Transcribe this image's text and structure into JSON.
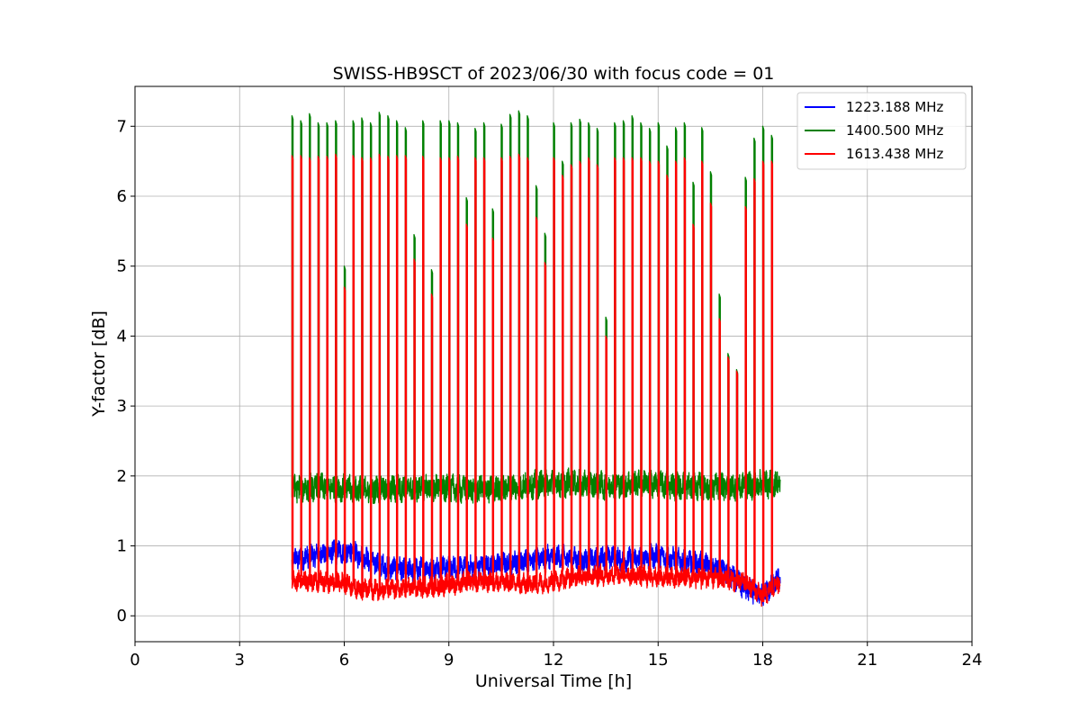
{
  "chart_data": {
    "type": "line",
    "title": "SWISS-HB9SCT of 2023/06/30 with focus code = 01",
    "xlabel": "Universal Time [h]",
    "ylabel": "Y-factor [dB]",
    "xlim": [
      0,
      24
    ],
    "ylim": [
      -0.37,
      7.57
    ],
    "x_ticks": [
      0,
      3,
      6,
      9,
      12,
      15,
      18,
      21,
      24
    ],
    "y_ticks": [
      0,
      1,
      2,
      3,
      4,
      5,
      6,
      7
    ],
    "grid": true,
    "legend_position": "top-right",
    "data_start_hour": 4.5,
    "data_end_hour": 18.5,
    "series": [
      {
        "name": "1223.188 MHz",
        "color": "#0000ff",
        "baseline": {
          "x": [
            4.5,
            5.0,
            5.5,
            6.0,
            6.5,
            7.0,
            7.5,
            8.0,
            8.5,
            9.0,
            9.5,
            10.0,
            10.5,
            11.0,
            11.5,
            12.0,
            12.5,
            13.0,
            13.5,
            14.0,
            14.5,
            15.0,
            15.5,
            16.0,
            16.5,
            17.0,
            17.5,
            18.0,
            18.5
          ],
          "y": [
            0.8,
            0.85,
            0.9,
            0.92,
            0.85,
            0.72,
            0.68,
            0.66,
            0.68,
            0.7,
            0.68,
            0.72,
            0.74,
            0.78,
            0.82,
            0.85,
            0.82,
            0.78,
            0.84,
            0.8,
            0.82,
            0.86,
            0.8,
            0.75,
            0.72,
            0.62,
            0.38,
            0.3,
            0.55
          ]
        }
      },
      {
        "name": "1400.500 MHz",
        "color": "#008000",
        "baseline": {
          "x": [
            4.5,
            5.5,
            6.5,
            7.5,
            8.5,
            9.5,
            10.5,
            11.5,
            12.5,
            13.5,
            14.5,
            15.5,
            16.5,
            17.5,
            18.5
          ],
          "y": [
            1.82,
            1.84,
            1.8,
            1.82,
            1.83,
            1.81,
            1.82,
            1.88,
            1.9,
            1.86,
            1.9,
            1.86,
            1.84,
            1.86,
            1.9
          ]
        },
        "spikes": {
          "x": [
            4.5,
            4.75,
            5.0,
            5.25,
            5.5,
            5.75,
            6.0,
            6.25,
            6.5,
            6.75,
            7.0,
            7.25,
            7.5,
            7.75,
            8.0,
            8.25,
            8.5,
            8.75,
            9.0,
            9.25,
            9.5,
            9.75,
            10.0,
            10.25,
            10.5,
            10.75,
            11.0,
            11.25,
            11.5,
            11.75,
            12.0,
            12.25,
            12.5,
            12.75,
            13.0,
            13.25,
            13.5,
            13.75,
            14.0,
            14.25,
            14.5,
            14.75,
            15.0,
            15.25,
            15.5,
            15.75,
            16.0,
            16.25,
            16.5,
            16.75,
            17.0,
            17.25,
            17.5,
            17.75,
            18.0,
            18.25
          ],
          "y": [
            7.15,
            7.08,
            7.18,
            7.05,
            7.05,
            7.08,
            5.0,
            7.08,
            7.12,
            7.05,
            7.2,
            7.15,
            7.08,
            6.98,
            5.45,
            7.08,
            4.95,
            7.08,
            7.08,
            7.05,
            5.98,
            6.97,
            7.05,
            5.82,
            7.03,
            7.17,
            7.22,
            7.15,
            6.15,
            5.47,
            7.05,
            6.5,
            7.05,
            7.1,
            7.05,
            6.97,
            4.27,
            7.05,
            7.08,
            7.15,
            7.05,
            6.97,
            7.05,
            6.72,
            6.98,
            7.05,
            6.2,
            6.98,
            6.35,
            4.6,
            3.75,
            3.52,
            6.27,
            6.83,
            7.0,
            6.87
          ]
        }
      },
      {
        "name": "1613.438 MHz",
        "color": "#ff0000",
        "baseline": {
          "x": [
            4.5,
            5.0,
            5.5,
            6.0,
            6.5,
            7.0,
            7.5,
            8.0,
            8.5,
            9.0,
            9.5,
            10.0,
            10.5,
            11.0,
            11.5,
            12.0,
            12.5,
            13.0,
            13.5,
            14.0,
            14.5,
            15.0,
            15.5,
            16.0,
            16.5,
            17.0,
            17.5,
            18.0,
            18.5
          ],
          "y": [
            0.5,
            0.5,
            0.48,
            0.48,
            0.38,
            0.38,
            0.38,
            0.4,
            0.42,
            0.45,
            0.48,
            0.5,
            0.48,
            0.45,
            0.46,
            0.5,
            0.55,
            0.58,
            0.58,
            0.6,
            0.57,
            0.55,
            0.55,
            0.55,
            0.54,
            0.52,
            0.48,
            0.28,
            0.5
          ]
        },
        "spikes": {
          "x": [
            4.5,
            4.75,
            5.0,
            5.25,
            5.5,
            5.75,
            6.0,
            6.25,
            6.5,
            6.75,
            7.0,
            7.25,
            7.5,
            7.75,
            8.0,
            8.25,
            8.5,
            8.75,
            9.0,
            9.25,
            9.5,
            9.75,
            10.0,
            10.25,
            10.5,
            10.75,
            11.0,
            11.25,
            11.5,
            11.75,
            12.0,
            12.25,
            12.5,
            12.75,
            13.0,
            13.25,
            13.5,
            13.75,
            14.0,
            14.25,
            14.5,
            14.75,
            15.0,
            15.25,
            15.5,
            15.75,
            16.0,
            16.25,
            16.5,
            16.75,
            17.0,
            17.25,
            17.5,
            17.75,
            18.0,
            18.25
          ],
          "y": [
            6.58,
            6.58,
            6.55,
            6.57,
            6.57,
            6.6,
            4.7,
            6.58,
            6.55,
            6.55,
            6.6,
            6.57,
            6.58,
            6.58,
            5.1,
            6.57,
            4.6,
            6.55,
            6.55,
            6.57,
            5.6,
            6.55,
            6.55,
            5.4,
            6.55,
            6.57,
            6.6,
            6.55,
            5.7,
            5.05,
            6.55,
            6.3,
            6.45,
            6.5,
            6.55,
            6.45,
            4.0,
            6.55,
            6.55,
            6.55,
            6.55,
            6.5,
            6.5,
            6.3,
            6.5,
            6.55,
            5.6,
            6.5,
            5.9,
            4.25,
            3.7,
            3.5,
            5.85,
            6.25,
            6.5,
            6.5
          ]
        }
      }
    ]
  }
}
